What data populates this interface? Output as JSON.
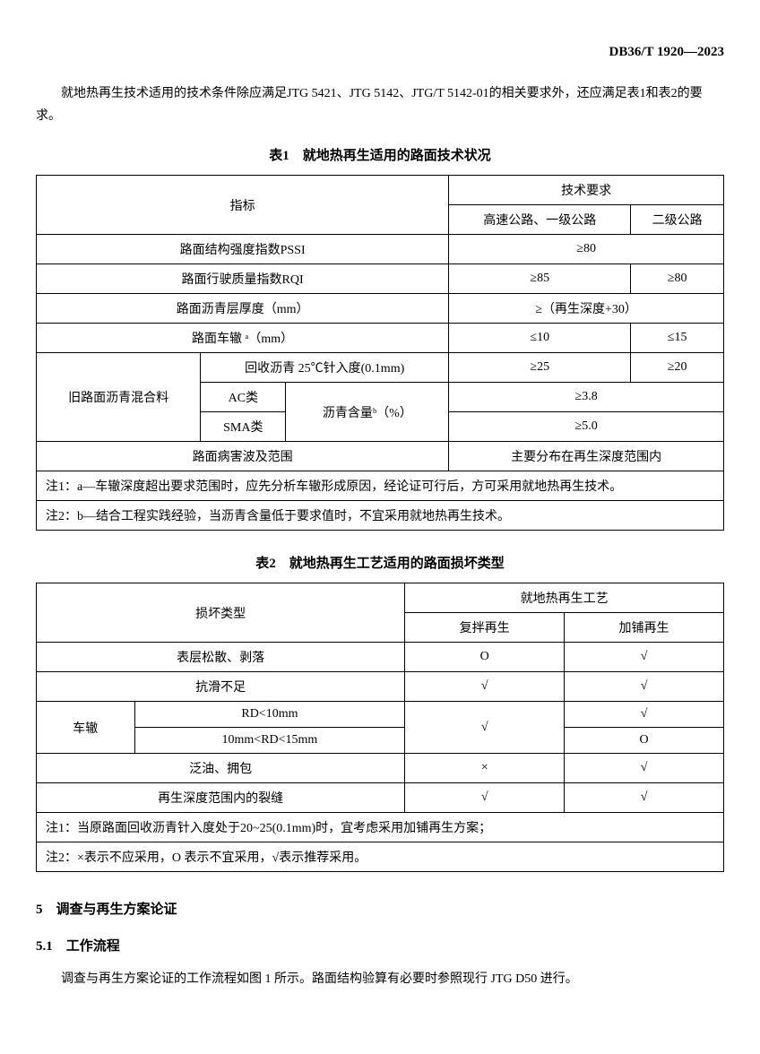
{
  "header": {
    "doc_number": "DB36/T 1920—2023"
  },
  "intro_paragraph": "就地热再生技术适用的技术条件除应满足JTG 5421、JTG 5142、JTG/T 5142-01的相关要求外，还应满足表1和表2的要求。",
  "table1": {
    "title": "表1　就地热再生适用的路面技术状况",
    "header_col1": "指标",
    "header_col2": "技术要求",
    "header_sub1": "高速公路、一级公路",
    "header_sub2": "二级公路",
    "rows": [
      {
        "indicator": "路面结构强度指数PSSI",
        "v1": "≥80",
        "v2": ""
      },
      {
        "indicator": "路面行驶质量指数RQI",
        "v1": "≥85",
        "v2": "≥80"
      },
      {
        "indicator": "路面沥青层厚度（mm）",
        "v1": "≥（再生深度+30）",
        "v2": ""
      },
      {
        "indicator": "路面车辙 ᵃ（mm）",
        "v1": "≤10",
        "v2": "≤15"
      }
    ],
    "asphalt_section": {
      "label": "旧路面沥青混合料",
      "penetration": "回收沥青 25℃针入度(0.1mm)",
      "penetration_v1": "≥25",
      "penetration_v2": "≥20",
      "ac_label": "AC类",
      "sma_label": "SMA类",
      "content_label": "沥青含量ᵇ（%）",
      "ac_value": "≥3.8",
      "sma_value": "≥5.0"
    },
    "damage_row": {
      "label": "路面病害波及范围",
      "value": "主要分布在再生深度范围内"
    },
    "note1": "注1：a—车辙深度超出要求范围时，应先分析车辙形成原因，经论证可行后，方可采用就地热再生技术。",
    "note2": "注2：b—结合工程实践经验，当沥青含量低于要求值时，不宜采用就地热再生技术。"
  },
  "table2": {
    "title": "表2　就地热再生工艺适用的路面损坏类型",
    "header_col1": "损坏类型",
    "header_col2": "就地热再生工艺",
    "header_sub1": "复拌再生",
    "header_sub2": "加铺再生",
    "rows": [
      {
        "type": "表层松散、剥落",
        "v1": "O",
        "v2": "√"
      },
      {
        "type": "抗滑不足",
        "v1": "√",
        "v2": "√"
      }
    ],
    "rut_section": {
      "label": "车辙",
      "row1": "RD<10mm",
      "row1_v1": "√",
      "row1_v2": "√",
      "row2": "10mm<RD<15mm",
      "row2_v2": "O"
    },
    "rows2": [
      {
        "type": "泛油、拥包",
        "v1": "×",
        "v2": "√"
      },
      {
        "type": "再生深度范围内的裂缝",
        "v1": "√",
        "v2": "√"
      }
    ],
    "note1": "注1：当原路面回收沥青针入度处于20~25(0.1mm)时，宜考虑采用加铺再生方案；",
    "note2": "注2：×表示不应采用，O 表示不宜采用，√表示推荐采用。"
  },
  "section5": {
    "title": "5　调查与再生方案论证",
    "sub1_title": "5.1　工作流程",
    "sub1_text": "调查与再生方案论证的工作流程如图 1 所示。路面结构验算有必要时参照现行 JTG D50 进行。"
  }
}
